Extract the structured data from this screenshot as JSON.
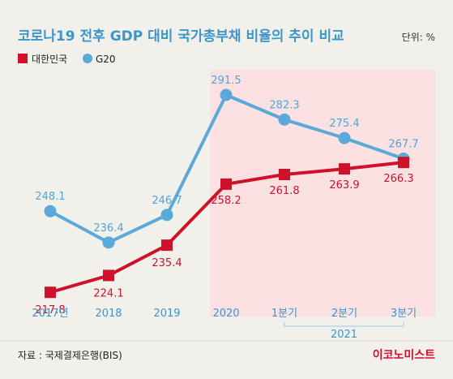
{
  "chart_data": {
    "type": "line",
    "title": "코로나19 전후 GDP 대비 국가총부채 비율의 추이 비교",
    "unit": "단위: %",
    "categories": [
      "2017년",
      "2018",
      "2019",
      "2020",
      "1분기",
      "2분기",
      "3분기"
    ],
    "category_group": {
      "label": "2021",
      "categories": [
        "1분기",
        "2분기",
        "3분기"
      ]
    },
    "series": [
      {
        "name": "대한민국",
        "color": "#d0112b",
        "marker": "square",
        "values": [
          217.8,
          224.1,
          235.4,
          258.2,
          261.8,
          263.9,
          266.3
        ]
      },
      {
        "name": "G20",
        "color": "#5ba9d8",
        "marker": "circle",
        "values": [
          248.1,
          236.4,
          246.7,
          291.5,
          282.3,
          275.4,
          267.7
        ]
      }
    ],
    "highlight_region": {
      "from": "2020",
      "to": "3분기",
      "color": "#fbe1e1"
    },
    "legend_placement": "top-left",
    "grid": false
  },
  "footer": {
    "source": "자료 : 국제결제은행(BIS)",
    "brand": "이코노미스트"
  }
}
